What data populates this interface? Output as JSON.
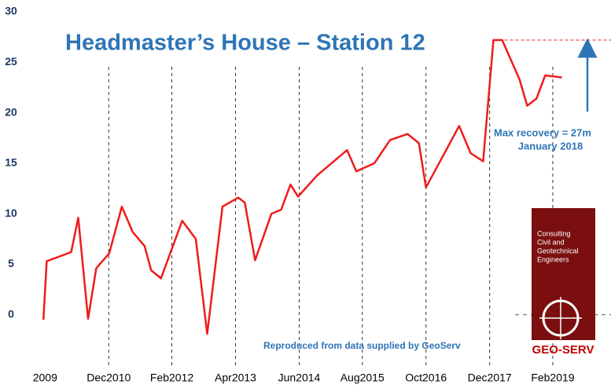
{
  "chart_data": {
    "type": "line",
    "title": "Headmaster’s House – Station 12",
    "annotations": [
      "Max recovery = 27m",
      "January 2018"
    ],
    "source": "Reproduced from data supplied by GeoServ",
    "logo": {
      "lines": [
        "Consulting",
        "Civil and",
        "Geotechnical",
        "Engineers"
      ],
      "name": "GEO-SERV"
    },
    "max_recovery": 27.2,
    "xlim": [
      2009.5,
      2020.15
    ],
    "xticks": [
      {
        "value": 2009.75,
        "label": "2009"
      },
      {
        "value": 2010.92,
        "label": "Dec2010"
      },
      {
        "value": 2012.08,
        "label": "Feb2012"
      },
      {
        "value": 2013.25,
        "label": "Apr2013"
      },
      {
        "value": 2014.42,
        "label": "Jun2014"
      },
      {
        "value": 2015.58,
        "label": "Aug2015"
      },
      {
        "value": 2016.75,
        "label": "Oct2016"
      },
      {
        "value": 2017.92,
        "label": "Dec2017"
      },
      {
        "value": 2019.08,
        "label": "Feb2019"
      }
    ],
    "ylim": [
      -5,
      30
    ],
    "yticks": [
      0,
      5,
      10,
      15,
      20,
      25,
      30
    ],
    "grid": true,
    "series": [
      {
        "color": "#ee1c1c",
        "x": [
          2009.72,
          2009.78,
          2010.23,
          2010.36,
          2010.54,
          2010.69,
          2010.93,
          2011.16,
          2011.36,
          2011.58,
          2011.7,
          2011.88,
          2012.27,
          2012.52,
          2012.73,
          2013.01,
          2013.3,
          2013.42,
          2013.61,
          2013.91,
          2014.09,
          2014.26,
          2014.4,
          2014.75,
          2015.3,
          2015.47,
          2015.8,
          2016.09,
          2016.41,
          2016.62,
          2016.75,
          2017.36,
          2017.57,
          2017.8,
          2017.99,
          2018.15,
          2018.47,
          2018.61,
          2018.78,
          2018.94,
          2019.25
        ],
        "values": [
          -0.5,
          5.3,
          6.2,
          9.6,
          -0.4,
          4.6,
          6.1,
          10.7,
          8.2,
          6.8,
          4.4,
          3.6,
          9.3,
          7.5,
          -1.9,
          10.7,
          11.6,
          11.1,
          5.4,
          10.0,
          10.4,
          12.9,
          11.7,
          13.8,
          16.3,
          14.2,
          15.0,
          17.3,
          17.9,
          17.0,
          12.6,
          18.7,
          16.0,
          15.2,
          27.2,
          27.2,
          23.3,
          20.7,
          21.4,
          23.7,
          23.5
        ]
      }
    ]
  }
}
